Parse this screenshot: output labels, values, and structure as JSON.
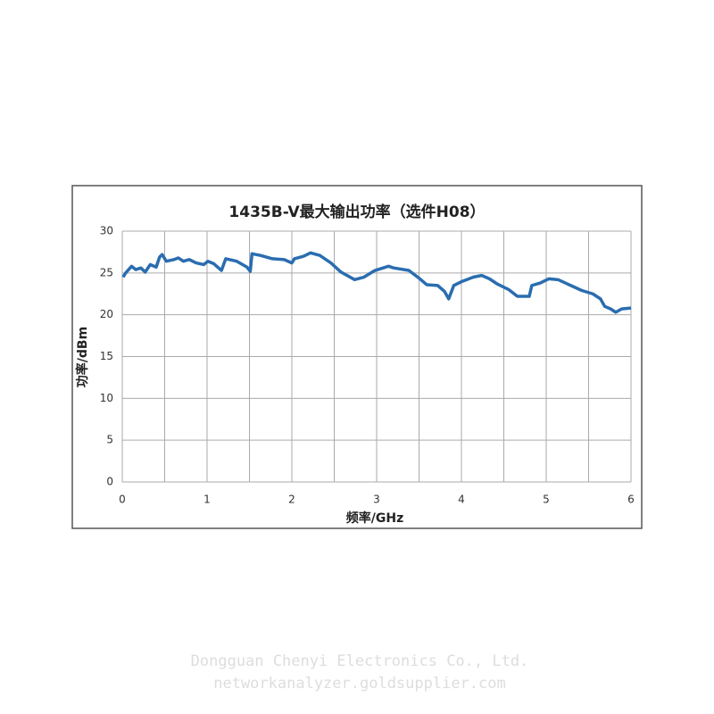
{
  "chart_data": {
    "type": "line",
    "title": "1435B-V最大输出功率（选件H08）",
    "x_label": "频率/GHz",
    "y_label": "功率/dBm",
    "x": [
      0.01,
      0.04,
      0.11,
      0.16,
      0.22,
      0.27,
      0.33,
      0.4,
      0.44,
      0.47,
      0.52,
      0.61,
      0.66,
      0.72,
      0.79,
      0.87,
      0.96,
      1.01,
      1.08,
      1.17,
      1.22,
      1.35,
      1.47,
      1.51,
      1.53,
      1.63,
      1.77,
      1.91,
      2.0,
      2.03,
      2.14,
      2.22,
      2.33,
      2.46,
      2.58,
      2.74,
      2.85,
      2.98,
      3.14,
      3.2,
      3.38,
      3.51,
      3.59,
      3.72,
      3.8,
      3.85,
      3.91,
      4.01,
      4.14,
      4.24,
      4.33,
      4.42,
      4.56,
      4.66,
      4.8,
      4.83,
      4.93,
      5.03,
      5.14,
      5.29,
      5.42,
      5.55,
      5.64,
      5.69,
      5.76,
      5.82,
      5.89,
      6.0
    ],
    "series": [
      {
        "name": "功率",
        "color": "#2a6db0",
        "values": [
          24.5,
          25,
          25.8,
          25.4,
          25.6,
          25.1,
          26,
          25.7,
          26.9,
          27.2,
          26.4,
          26.6,
          26.8,
          26.4,
          26.6,
          26.2,
          26,
          26.4,
          26.1,
          25.3,
          26.7,
          26.4,
          25.7,
          25.2,
          27.3,
          27.1,
          26.7,
          26.6,
          26.2,
          26.7,
          27,
          27.4,
          27.1,
          26.2,
          25.1,
          24.2,
          24.5,
          25.3,
          25.8,
          25.6,
          25.3,
          24.3,
          23.6,
          23.5,
          22.8,
          21.9,
          23.5,
          24,
          24.5,
          24.7,
          24.3,
          23.7,
          23,
          22.2,
          22.2,
          23.5,
          23.8,
          24.3,
          24.2,
          23.5,
          22.9,
          22.5,
          21.9,
          21,
          20.7,
          20.3,
          20.7,
          20.8
        ]
      }
    ],
    "xlim": [
      0,
      6
    ],
    "xticks": [
      0,
      1,
      2,
      3,
      4,
      5,
      6
    ],
    "x_minor_grid": [
      0.5,
      1.5,
      2.5,
      3.5,
      4.5,
      5.5
    ],
    "ylim": [
      0,
      30
    ],
    "yticks": [
      0,
      5,
      10,
      15,
      20,
      25,
      30
    ],
    "grid": true
  },
  "watermark": {
    "company": "Dongguan Chenyi Electronics Co., Ltd.",
    "site": "networkanalyzer.goldsupplier.com"
  }
}
